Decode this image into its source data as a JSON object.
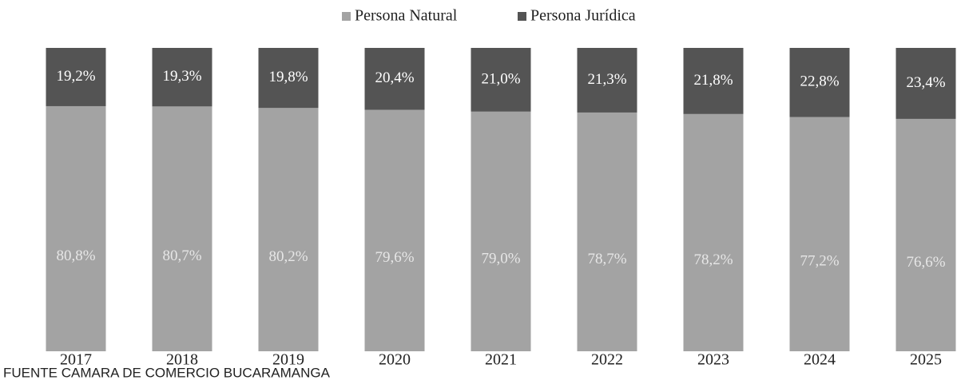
{
  "chart_data": {
    "type": "stacked_bar",
    "categories": [
      "2017",
      "2018",
      "2019",
      "2020",
      "2021",
      "2022",
      "2023",
      "2024",
      "2025"
    ],
    "series": [
      {
        "name": "Persona Natural",
        "color": "#a3a3a3",
        "values": [
          80.8,
          80.7,
          80.2,
          79.6,
          79.0,
          78.7,
          78.2,
          77.2,
          76.6
        ],
        "value_labels": [
          "80,8%",
          "80,7%",
          "80,2%",
          "79,6%",
          "79,0%",
          "78,7%",
          "78,2%",
          "77,2%",
          "76,6%"
        ]
      },
      {
        "name": "Persona Jurídica",
        "color": "#545454",
        "values": [
          19.2,
          19.3,
          19.8,
          20.4,
          21.0,
          21.3,
          21.8,
          22.8,
          23.4
        ],
        "value_labels": [
          "19,2%",
          "19,3%",
          "19,8%",
          "20,4%",
          "21,0%",
          "21,3%",
          "21,8%",
          "22,8%",
          "23,4%"
        ]
      }
    ],
    "source": "FUENTE CAMARA DE COMERCIO BUCARAMANGA"
  }
}
